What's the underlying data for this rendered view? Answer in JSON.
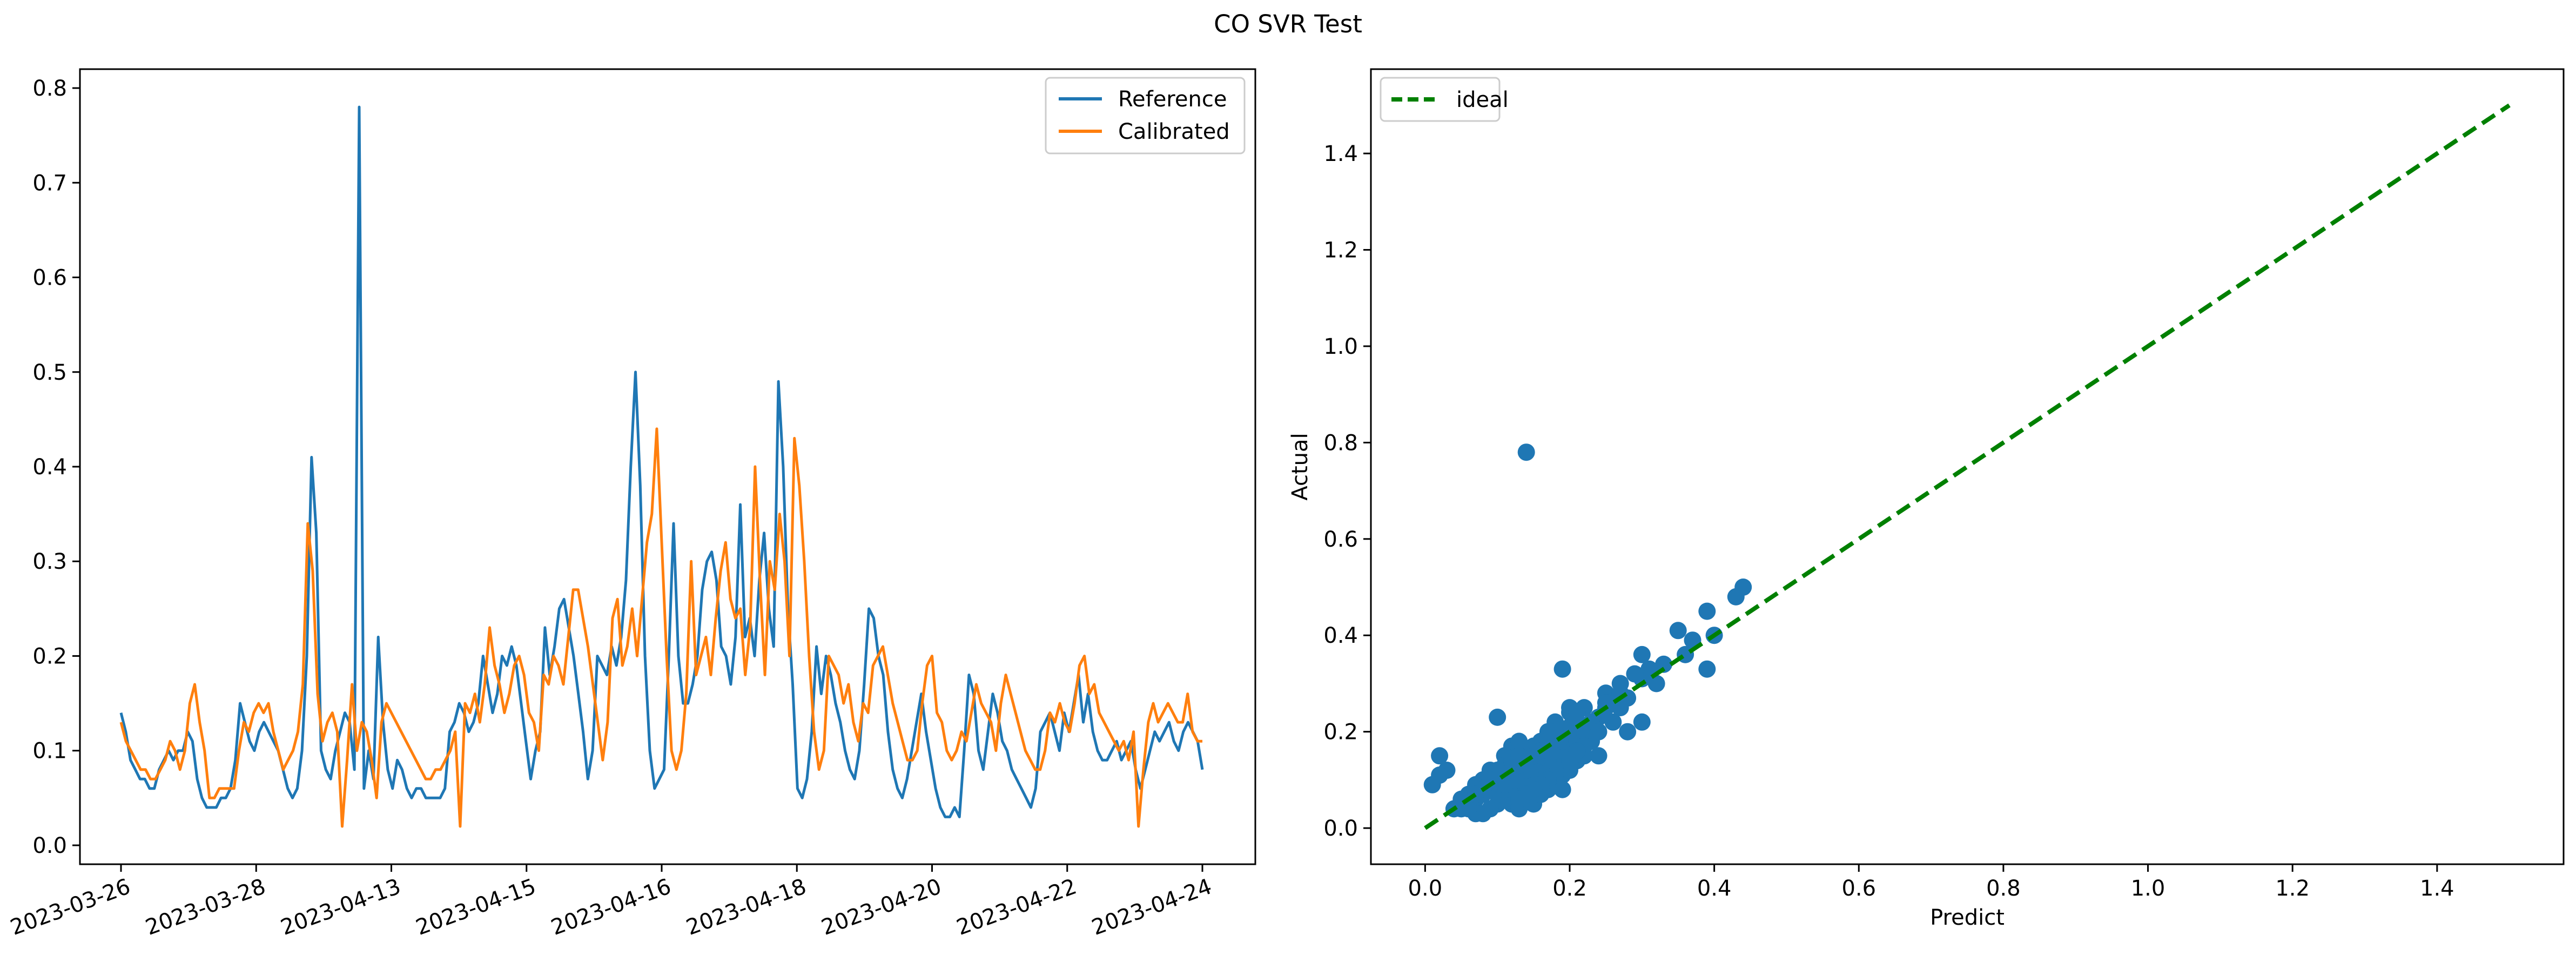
{
  "figure": {
    "title": "CO SVR Test"
  },
  "chart_data": [
    {
      "type": "line",
      "xlabel": "",
      "ylabel": "",
      "ylim": [
        -0.02,
        0.82
      ],
      "x_tick_labels": [
        "2023-03-26",
        "2023-03-28",
        "2023-04-13",
        "2023-04-15",
        "2023-04-16",
        "2023-04-18",
        "2023-04-20",
        "2023-04-22",
        "2023-04-24"
      ],
      "y_ticks": [
        0.0,
        0.1,
        0.2,
        0.3,
        0.4,
        0.5,
        0.6,
        0.7,
        0.8
      ],
      "y_tick_labels": [
        "0.0",
        "0.1",
        "0.2",
        "0.3",
        "0.4",
        "0.5",
        "0.6",
        "0.7",
        "0.8"
      ],
      "legend_position": "top-right",
      "grid": false,
      "series": [
        {
          "name": "Reference",
          "color": "#1f77b4",
          "values": [
            0.14,
            0.12,
            0.09,
            0.08,
            0.07,
            0.07,
            0.06,
            0.06,
            0.08,
            0.09,
            0.1,
            0.09,
            0.1,
            0.1,
            0.12,
            0.11,
            0.07,
            0.05,
            0.04,
            0.04,
            0.04,
            0.05,
            0.05,
            0.06,
            0.09,
            0.15,
            0.13,
            0.11,
            0.1,
            0.12,
            0.13,
            0.12,
            0.11,
            0.1,
            0.08,
            0.06,
            0.05,
            0.06,
            0.1,
            0.2,
            0.41,
            0.33,
            0.1,
            0.08,
            0.07,
            0.1,
            0.12,
            0.14,
            0.13,
            0.08,
            0.78,
            0.06,
            0.1,
            0.07,
            0.22,
            0.13,
            0.08,
            0.06,
            0.09,
            0.08,
            0.06,
            0.05,
            0.06,
            0.06,
            0.05,
            0.05,
            0.05,
            0.05,
            0.06,
            0.12,
            0.13,
            0.15,
            0.14,
            0.12,
            0.13,
            0.15,
            0.2,
            0.17,
            0.14,
            0.16,
            0.2,
            0.19,
            0.21,
            0.19,
            0.15,
            0.11,
            0.07,
            0.1,
            0.12,
            0.23,
            0.18,
            0.21,
            0.25,
            0.26,
            0.23,
            0.2,
            0.16,
            0.12,
            0.07,
            0.1,
            0.2,
            0.19,
            0.18,
            0.21,
            0.19,
            0.22,
            0.28,
            0.4,
            0.5,
            0.38,
            0.2,
            0.1,
            0.06,
            0.07,
            0.08,
            0.2,
            0.34,
            0.2,
            0.15,
            0.15,
            0.17,
            0.2,
            0.27,
            0.3,
            0.31,
            0.28,
            0.21,
            0.2,
            0.17,
            0.22,
            0.36,
            0.22,
            0.24,
            0.2,
            0.28,
            0.33,
            0.25,
            0.21,
            0.49,
            0.4,
            0.25,
            0.17,
            0.06,
            0.05,
            0.07,
            0.12,
            0.21,
            0.16,
            0.2,
            0.18,
            0.15,
            0.13,
            0.1,
            0.08,
            0.07,
            0.1,
            0.17,
            0.25,
            0.24,
            0.2,
            0.18,
            0.12,
            0.08,
            0.06,
            0.05,
            0.07,
            0.1,
            0.13,
            0.16,
            0.12,
            0.09,
            0.06,
            0.04,
            0.03,
            0.03,
            0.04,
            0.03,
            0.1,
            0.18,
            0.16,
            0.1,
            0.08,
            0.12,
            0.16,
            0.14,
            0.11,
            0.1,
            0.08,
            0.07,
            0.06,
            0.05,
            0.04,
            0.06,
            0.12,
            0.13,
            0.14,
            0.12,
            0.1,
            0.14,
            0.12,
            0.15,
            0.18,
            0.13,
            0.16,
            0.12,
            0.1,
            0.09,
            0.09,
            0.1,
            0.11,
            0.09,
            0.1,
            0.11,
            0.08,
            0.06,
            0.08,
            0.1,
            0.12,
            0.11,
            0.12,
            0.13,
            0.11,
            0.1,
            0.12,
            0.13,
            0.12,
            0.11,
            0.08
          ]
        },
        {
          "name": "Calibrated",
          "color": "#ff7f0e",
          "values": [
            0.13,
            0.11,
            0.1,
            0.09,
            0.08,
            0.08,
            0.07,
            0.07,
            0.08,
            0.09,
            0.11,
            0.1,
            0.08,
            0.1,
            0.15,
            0.17,
            0.13,
            0.1,
            0.05,
            0.05,
            0.06,
            0.06,
            0.06,
            0.06,
            0.1,
            0.13,
            0.12,
            0.14,
            0.15,
            0.14,
            0.15,
            0.12,
            0.1,
            0.08,
            0.09,
            0.1,
            0.12,
            0.17,
            0.34,
            0.29,
            0.16,
            0.11,
            0.13,
            0.14,
            0.12,
            0.02,
            0.09,
            0.17,
            0.1,
            0.13,
            0.12,
            0.09,
            0.05,
            0.13,
            0.15,
            0.14,
            0.13,
            0.12,
            0.11,
            0.1,
            0.09,
            0.08,
            0.07,
            0.07,
            0.08,
            0.08,
            0.09,
            0.1,
            0.12,
            0.02,
            0.15,
            0.14,
            0.16,
            0.13,
            0.17,
            0.23,
            0.19,
            0.17,
            0.14,
            0.16,
            0.19,
            0.2,
            0.18,
            0.14,
            0.13,
            0.1,
            0.18,
            0.17,
            0.2,
            0.19,
            0.17,
            0.22,
            0.27,
            0.27,
            0.24,
            0.21,
            0.17,
            0.13,
            0.09,
            0.13,
            0.24,
            0.26,
            0.19,
            0.21,
            0.25,
            0.2,
            0.26,
            0.32,
            0.35,
            0.44,
            0.32,
            0.2,
            0.1,
            0.08,
            0.1,
            0.16,
            0.3,
            0.18,
            0.2,
            0.22,
            0.18,
            0.24,
            0.29,
            0.32,
            0.26,
            0.24,
            0.25,
            0.18,
            0.23,
            0.4,
            0.28,
            0.18,
            0.3,
            0.27,
            0.35,
            0.3,
            0.2,
            0.43,
            0.38,
            0.3,
            0.2,
            0.12,
            0.08,
            0.1,
            0.2,
            0.19,
            0.18,
            0.15,
            0.17,
            0.13,
            0.11,
            0.15,
            0.14,
            0.19,
            0.2,
            0.21,
            0.18,
            0.15,
            0.13,
            0.11,
            0.09,
            0.09,
            0.1,
            0.15,
            0.19,
            0.2,
            0.14,
            0.13,
            0.1,
            0.09,
            0.1,
            0.12,
            0.11,
            0.14,
            0.17,
            0.15,
            0.14,
            0.13,
            0.1,
            0.15,
            0.18,
            0.16,
            0.14,
            0.12,
            0.1,
            0.09,
            0.08,
            0.08,
            0.1,
            0.14,
            0.13,
            0.15,
            0.13,
            0.12,
            0.15,
            0.19,
            0.2,
            0.16,
            0.17,
            0.14,
            0.13,
            0.12,
            0.11,
            0.1,
            0.11,
            0.09,
            0.12,
            0.02,
            0.08,
            0.13,
            0.15,
            0.13,
            0.14,
            0.15,
            0.14,
            0.13,
            0.13,
            0.16,
            0.12,
            0.11,
            0.11
          ]
        }
      ]
    },
    {
      "type": "scatter",
      "xlabel": "Predict",
      "ylabel": "Actual",
      "xlim": [
        -0.075,
        1.575
      ],
      "ylim": [
        -0.075,
        1.575
      ],
      "x_ticks": [
        0.0,
        0.2,
        0.4,
        0.6,
        0.8,
        1.0,
        1.2,
        1.4
      ],
      "x_tick_labels": [
        "0.0",
        "0.2",
        "0.4",
        "0.6",
        "0.8",
        "1.0",
        "1.2",
        "1.4"
      ],
      "y_ticks": [
        0.0,
        0.2,
        0.4,
        0.6,
        0.8,
        1.0,
        1.2,
        1.4
      ],
      "y_tick_labels": [
        "0.0",
        "0.2",
        "0.4",
        "0.6",
        "0.8",
        "1.0",
        "1.2",
        "1.4"
      ],
      "legend_position": "top-left",
      "grid": false,
      "points_color": "#1f77b4",
      "ideal_line": {
        "name": "ideal",
        "color": "#008000",
        "style": "dashed",
        "x": [
          0,
          1.5
        ],
        "y": [
          0,
          1.5
        ]
      },
      "points": [
        [
          0.14,
          0.78
        ],
        [
          0.44,
          0.5
        ],
        [
          0.43,
          0.48
        ],
        [
          0.39,
          0.45
        ],
        [
          0.4,
          0.4
        ],
        [
          0.39,
          0.33
        ],
        [
          0.35,
          0.41
        ],
        [
          0.36,
          0.36
        ],
        [
          0.37,
          0.39
        ],
        [
          0.33,
          0.34
        ],
        [
          0.3,
          0.36
        ],
        [
          0.31,
          0.33
        ],
        [
          0.3,
          0.31
        ],
        [
          0.32,
          0.3
        ],
        [
          0.29,
          0.32
        ],
        [
          0.27,
          0.3
        ],
        [
          0.26,
          0.27
        ],
        [
          0.25,
          0.25
        ],
        [
          0.24,
          0.23
        ],
        [
          0.23,
          0.21
        ],
        [
          0.28,
          0.2
        ],
        [
          0.3,
          0.22
        ],
        [
          0.27,
          0.25
        ],
        [
          0.25,
          0.28
        ],
        [
          0.22,
          0.25
        ],
        [
          0.21,
          0.22
        ],
        [
          0.2,
          0.24
        ],
        [
          0.19,
          0.2
        ],
        [
          0.19,
          0.33
        ],
        [
          0.18,
          0.19
        ],
        [
          0.17,
          0.2
        ],
        [
          0.16,
          0.18
        ],
        [
          0.15,
          0.17
        ],
        [
          0.14,
          0.16
        ],
        [
          0.16,
          0.14
        ],
        [
          0.15,
          0.12
        ],
        [
          0.14,
          0.11
        ],
        [
          0.13,
          0.12
        ],
        [
          0.12,
          0.13
        ],
        [
          0.11,
          0.1
        ],
        [
          0.1,
          0.09
        ],
        [
          0.09,
          0.08
        ],
        [
          0.08,
          0.07
        ],
        [
          0.07,
          0.06
        ],
        [
          0.06,
          0.05
        ],
        [
          0.05,
          0.04
        ],
        [
          0.04,
          0.04
        ],
        [
          0.03,
          0.12
        ],
        [
          0.02,
          0.15
        ],
        [
          0.02,
          0.11
        ],
        [
          0.01,
          0.09
        ],
        [
          0.1,
          0.23
        ],
        [
          0.12,
          0.17
        ],
        [
          0.13,
          0.18
        ],
        [
          0.11,
          0.15
        ],
        [
          0.09,
          0.12
        ],
        [
          0.08,
          0.1
        ],
        [
          0.07,
          0.09
        ],
        [
          0.06,
          0.07
        ],
        [
          0.05,
          0.06
        ],
        [
          0.12,
          0.05
        ],
        [
          0.13,
          0.04
        ],
        [
          0.14,
          0.06
        ],
        [
          0.15,
          0.05
        ],
        [
          0.16,
          0.07
        ],
        [
          0.17,
          0.08
        ],
        [
          0.18,
          0.09
        ],
        [
          0.19,
          0.11
        ],
        [
          0.2,
          0.12
        ],
        [
          0.21,
          0.14
        ],
        [
          0.22,
          0.15
        ],
        [
          0.2,
          0.16
        ],
        [
          0.19,
          0.15
        ],
        [
          0.18,
          0.13
        ],
        [
          0.17,
          0.14
        ],
        [
          0.16,
          0.12
        ],
        [
          0.15,
          0.1
        ],
        [
          0.14,
          0.09
        ],
        [
          0.13,
          0.08
        ],
        [
          0.12,
          0.07
        ],
        [
          0.11,
          0.06
        ],
        [
          0.1,
          0.05
        ],
        [
          0.09,
          0.04
        ],
        [
          0.08,
          0.03
        ],
        [
          0.07,
          0.03
        ],
        [
          0.06,
          0.04
        ],
        [
          0.1,
          0.07
        ],
        [
          0.11,
          0.08
        ],
        [
          0.12,
          0.09
        ],
        [
          0.13,
          0.1
        ],
        [
          0.14,
          0.12
        ],
        [
          0.15,
          0.13
        ],
        [
          0.16,
          0.15
        ],
        [
          0.17,
          0.16
        ],
        [
          0.18,
          0.17
        ],
        [
          0.19,
          0.18
        ],
        [
          0.2,
          0.19
        ],
        [
          0.21,
          0.18
        ],
        [
          0.22,
          0.2
        ],
        [
          0.23,
          0.22
        ],
        [
          0.24,
          0.2
        ],
        [
          0.26,
          0.22
        ],
        [
          0.2,
          0.21
        ],
        [
          0.18,
          0.22
        ],
        [
          0.17,
          0.18
        ],
        [
          0.16,
          0.16
        ],
        [
          0.15,
          0.15
        ],
        [
          0.14,
          0.14
        ],
        [
          0.13,
          0.13
        ],
        [
          0.12,
          0.12
        ],
        [
          0.11,
          0.11
        ],
        [
          0.1,
          0.1
        ],
        [
          0.09,
          0.09
        ],
        [
          0.08,
          0.08
        ],
        [
          0.07,
          0.07
        ],
        [
          0.11,
          0.13
        ],
        [
          0.12,
          0.14
        ],
        [
          0.13,
          0.15
        ],
        [
          0.1,
          0.12
        ],
        [
          0.09,
          0.1
        ],
        [
          0.19,
          0.08
        ],
        [
          0.24,
          0.15
        ],
        [
          0.23,
          0.18
        ],
        [
          0.22,
          0.17
        ],
        [
          0.21,
          0.16
        ],
        [
          0.2,
          0.14
        ],
        [
          0.18,
          0.11
        ],
        [
          0.17,
          0.1
        ],
        [
          0.16,
          0.09
        ],
        [
          0.15,
          0.08
        ],
        [
          0.14,
          0.07
        ],
        [
          0.13,
          0.06
        ],
        [
          0.12,
          0.1
        ],
        [
          0.11,
          0.09
        ],
        [
          0.2,
          0.25
        ],
        [
          0.21,
          0.24
        ],
        [
          0.18,
          0.2
        ],
        [
          0.25,
          0.26
        ],
        [
          0.27,
          0.28
        ],
        [
          0.28,
          0.27
        ]
      ]
    }
  ],
  "legend": {
    "reference_label": "Reference",
    "calibrated_label": "Calibrated",
    "ideal_label": "ideal"
  }
}
